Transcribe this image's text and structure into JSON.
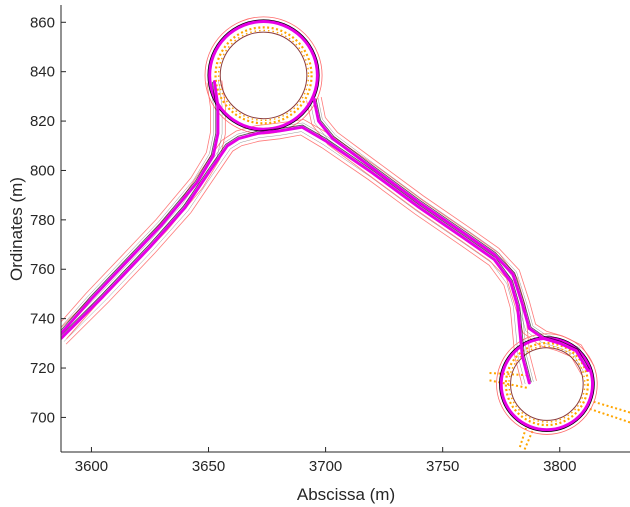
{
  "chart_data": {
    "type": "line",
    "title": "",
    "xlabel": "Abscissa (m)",
    "ylabel": "Ordinates (m)",
    "xlim": [
      3587,
      3830
    ],
    "ylim": [
      686,
      867
    ],
    "xticks": [
      3600,
      3650,
      3700,
      3750,
      3800
    ],
    "yticks": [
      700,
      720,
      740,
      760,
      780,
      800,
      820,
      840,
      860
    ],
    "grid": false,
    "legend": "none",
    "colors": {
      "main_path": "#e600e6",
      "lane_dots": "#ffa500",
      "offset_lines": "#ff6b6b",
      "island": "#8b3a3a",
      "curb": "#000000",
      "ramp_lines": "#505050",
      "axis": "#262626"
    },
    "roundabouts": [
      {
        "name": "north",
        "center": [
          3673.5,
          838.5
        ],
        "radius_inner": 18.5,
        "radius_path": 23,
        "radius_dots": 20.5,
        "radius_outer_line": 25
      },
      {
        "name": "southeast",
        "center": [
          3794.5,
          713.5
        ],
        "radius_inner": 15.5,
        "radius_path": 19.5,
        "radius_dots": 17.5,
        "radius_outer_line": 21.5
      }
    ],
    "series": [
      {
        "values_xy": [
          [
            3587,
            732
          ],
          [
            3605,
            749
          ],
          [
            3625,
            769
          ],
          [
            3640,
            785
          ],
          [
            3650,
            799
          ],
          [
            3658,
            810
          ],
          [
            3663,
            813
          ],
          [
            3671,
            815
          ],
          [
            3680,
            816
          ],
          [
            3690,
            817.5
          ],
          [
            3700,
            812
          ],
          [
            3720,
            799
          ],
          [
            3740,
            785
          ],
          [
            3760,
            772
          ],
          [
            3772,
            764
          ],
          [
            3779,
            755
          ],
          [
            3782,
            745
          ],
          [
            3783,
            735
          ],
          [
            3784,
            725
          ],
          [
            3787,
            714
          ]
        ]
      },
      {
        "values_xy": [
          [
            3587,
            734
          ],
          [
            3600,
            748
          ],
          [
            3615,
            763
          ],
          [
            3630,
            778
          ],
          [
            3645,
            795
          ],
          [
            3652,
            806
          ],
          [
            3654,
            815
          ],
          [
            3654,
            826
          ],
          [
            3652.5,
            836
          ]
        ]
      },
      {
        "values_xy": [
          [
            3695,
            829
          ],
          [
            3697,
            820
          ],
          [
            3703,
            813
          ],
          [
            3720,
            801
          ],
          [
            3740,
            787
          ],
          [
            3760,
            774
          ],
          [
            3772,
            766
          ],
          [
            3780,
            758
          ],
          [
            3784,
            746
          ],
          [
            3787,
            736
          ],
          [
            3793,
            732
          ],
          [
            3800,
            730
          ],
          [
            3807,
            727
          ],
          [
            3812,
            719
          ]
        ]
      }
    ]
  }
}
